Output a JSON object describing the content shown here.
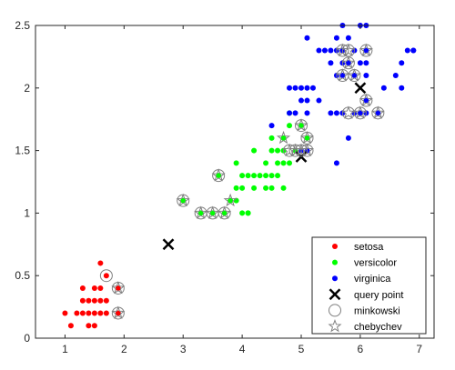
{
  "chart_data": {
    "type": "scatter",
    "title": "",
    "xlabel": "",
    "ylabel": "",
    "xlim": [
      0.5,
      7.25
    ],
    "ylim": [
      0,
      2.5
    ],
    "xticks": [
      1,
      2,
      3,
      4,
      5,
      6,
      7
    ],
    "yticks": [
      0,
      0.5,
      1,
      1.5,
      2,
      2.5
    ],
    "xtick_labels": [
      "1",
      "2",
      "3",
      "4",
      "5",
      "6",
      "7"
    ],
    "ytick_labels": [
      "0",
      "0.5",
      "1",
      "1.5",
      "2",
      "2.5"
    ],
    "grid": false,
    "legend_position": "bottom-right",
    "series": [
      {
        "name": "setosa",
        "marker": "dot",
        "color": "#ff0000",
        "points": [
          [
            1.0,
            0.2
          ],
          [
            1.1,
            0.1
          ],
          [
            1.2,
            0.2
          ],
          [
            1.3,
            0.2
          ],
          [
            1.4,
            0.2
          ],
          [
            1.5,
            0.2
          ],
          [
            1.6,
            0.2
          ],
          [
            1.7,
            0.2
          ],
          [
            1.9,
            0.2
          ],
          [
            1.3,
            0.3
          ],
          [
            1.4,
            0.3
          ],
          [
            1.5,
            0.3
          ],
          [
            1.6,
            0.3
          ],
          [
            1.7,
            0.3
          ],
          [
            1.3,
            0.4
          ],
          [
            1.5,
            0.4
          ],
          [
            1.6,
            0.4
          ],
          [
            1.9,
            0.4
          ],
          [
            1.6,
            0.6
          ],
          [
            1.7,
            0.5
          ],
          [
            1.4,
            0.1
          ],
          [
            1.5,
            0.1
          ]
        ]
      },
      {
        "name": "versicolor",
        "marker": "dot",
        "color": "#00ff00",
        "points": [
          [
            3.0,
            1.1
          ],
          [
            3.3,
            1.0
          ],
          [
            3.5,
            1.0
          ],
          [
            3.7,
            1.0
          ],
          [
            3.6,
            1.3
          ],
          [
            3.8,
            1.1
          ],
          [
            3.9,
            1.1
          ],
          [
            3.9,
            1.2
          ],
          [
            3.9,
            1.4
          ],
          [
            4.0,
            1.0
          ],
          [
            4.1,
            1.0
          ],
          [
            4.0,
            1.2
          ],
          [
            4.0,
            1.3
          ],
          [
            4.1,
            1.3
          ],
          [
            4.2,
            1.3
          ],
          [
            4.3,
            1.3
          ],
          [
            4.4,
            1.3
          ],
          [
            4.5,
            1.3
          ],
          [
            4.6,
            1.3
          ],
          [
            4.2,
            1.2
          ],
          [
            4.4,
            1.2
          ],
          [
            4.5,
            1.2
          ],
          [
            4.7,
            1.2
          ],
          [
            4.4,
            1.4
          ],
          [
            4.6,
            1.4
          ],
          [
            4.7,
            1.4
          ],
          [
            4.8,
            1.4
          ],
          [
            4.2,
            1.5
          ],
          [
            4.5,
            1.5
          ],
          [
            4.6,
            1.5
          ],
          [
            4.7,
            1.5
          ],
          [
            4.9,
            1.5
          ],
          [
            4.1,
            1.0
          ],
          [
            4.5,
            1.6
          ],
          [
            4.7,
            1.6
          ],
          [
            4.8,
            1.8
          ],
          [
            5.0,
            1.7
          ],
          [
            5.1,
            1.6
          ],
          [
            4.8,
            1.7
          ]
        ]
      },
      {
        "name": "virginica",
        "marker": "dot",
        "color": "#0000ff",
        "points": [
          [
            4.5,
            1.7
          ],
          [
            4.9,
            1.8
          ],
          [
            4.8,
            1.8
          ],
          [
            5.1,
            1.5
          ],
          [
            5.6,
            1.4
          ],
          [
            5.0,
            1.5
          ],
          [
            4.8,
            2.0
          ],
          [
            4.9,
            2.0
          ],
          [
            5.0,
            2.0
          ],
          [
            5.1,
            2.0
          ],
          [
            5.2,
            2.0
          ],
          [
            5.0,
            1.9
          ],
          [
            5.1,
            1.9
          ],
          [
            5.1,
            1.8
          ],
          [
            5.3,
            1.9
          ],
          [
            5.6,
            1.8
          ],
          [
            5.5,
            1.8
          ],
          [
            5.7,
            1.8
          ],
          [
            5.9,
            1.8
          ],
          [
            6.0,
            1.8
          ],
          [
            6.1,
            1.8
          ],
          [
            5.6,
            2.1
          ],
          [
            5.7,
            2.1
          ],
          [
            5.9,
            2.1
          ],
          [
            6.1,
            2.1
          ],
          [
            6.6,
            2.1
          ],
          [
            5.5,
            2.2
          ],
          [
            5.7,
            2.2
          ],
          [
            5.8,
            2.2
          ],
          [
            6.0,
            2.2
          ],
          [
            6.1,
            2.2
          ],
          [
            6.7,
            2.2
          ],
          [
            5.3,
            2.3
          ],
          [
            5.4,
            2.3
          ],
          [
            5.5,
            2.3
          ],
          [
            5.6,
            2.3
          ],
          [
            5.7,
            2.3
          ],
          [
            5.9,
            2.3
          ],
          [
            6.1,
            2.3
          ],
          [
            6.8,
            2.3
          ],
          [
            6.9,
            2.3
          ],
          [
            5.1,
            2.4
          ],
          [
            5.6,
            2.4
          ],
          [
            5.8,
            2.4
          ],
          [
            5.7,
            2.5
          ],
          [
            6.0,
            2.5
          ],
          [
            6.1,
            2.5
          ],
          [
            6.4,
            2.0
          ],
          [
            6.7,
            2.0
          ],
          [
            6.3,
            1.8
          ],
          [
            5.8,
            1.6
          ],
          [
            6.1,
            1.9
          ],
          [
            6.9,
            2.3
          ]
        ]
      },
      {
        "name": "query point",
        "marker": "x",
        "color": "#000000",
        "points": [
          [
            2.75,
            0.75
          ],
          [
            5.0,
            1.45
          ],
          [
            6.0,
            2.0
          ]
        ]
      },
      {
        "name": "minkowski",
        "marker": "circle",
        "color": "#808080",
        "points": [
          [
            1.7,
            0.5
          ],
          [
            1.9,
            0.4
          ],
          [
            1.9,
            0.2
          ],
          [
            3.0,
            1.1
          ],
          [
            3.3,
            1.0
          ],
          [
            3.5,
            1.0
          ],
          [
            3.7,
            1.0
          ],
          [
            3.6,
            1.3
          ],
          [
            4.8,
            1.5
          ],
          [
            4.9,
            1.5
          ],
          [
            5.0,
            1.5
          ],
          [
            5.1,
            1.5
          ],
          [
            5.0,
            1.7
          ],
          [
            5.1,
            1.6
          ],
          [
            5.7,
            2.3
          ],
          [
            5.8,
            2.3
          ],
          [
            6.1,
            2.3
          ],
          [
            5.7,
            2.1
          ],
          [
            5.8,
            2.2
          ],
          [
            5.9,
            2.1
          ],
          [
            5.8,
            1.8
          ],
          [
            6.0,
            1.8
          ],
          [
            6.1,
            1.9
          ],
          [
            6.3,
            1.8
          ]
        ]
      },
      {
        "name": "chebychev",
        "marker": "star",
        "color": "#808080",
        "points": [
          [
            1.9,
            0.4
          ],
          [
            1.9,
            0.2
          ],
          [
            3.0,
            1.1
          ],
          [
            3.3,
            1.0
          ],
          [
            3.5,
            1.0
          ],
          [
            3.7,
            1.0
          ],
          [
            3.6,
            1.3
          ],
          [
            3.8,
            1.1
          ],
          [
            4.7,
            1.6
          ],
          [
            4.8,
            1.5
          ],
          [
            4.9,
            1.5
          ],
          [
            5.0,
            1.5
          ],
          [
            5.1,
            1.5
          ],
          [
            5.0,
            1.7
          ],
          [
            5.1,
            1.6
          ],
          [
            5.7,
            2.3
          ],
          [
            5.8,
            2.3
          ],
          [
            6.1,
            2.3
          ],
          [
            5.7,
            2.1
          ],
          [
            5.8,
            2.2
          ],
          [
            5.9,
            2.1
          ],
          [
            5.8,
            1.8
          ],
          [
            6.0,
            1.8
          ],
          [
            6.1,
            1.9
          ],
          [
            6.3,
            1.8
          ]
        ]
      }
    ]
  }
}
